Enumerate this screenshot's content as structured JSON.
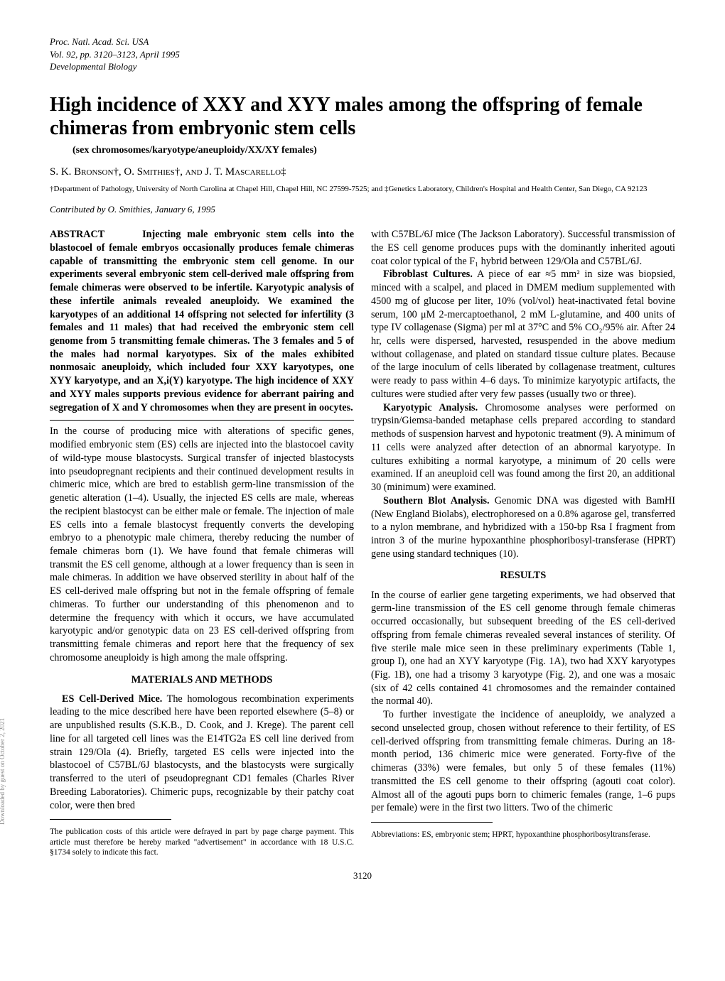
{
  "header": {
    "line1": "Proc. Natl. Acad. Sci. USA",
    "line2": "Vol. 92, pp. 3120–3123, April 1995",
    "line3": "Developmental Biology"
  },
  "title": "High incidence of XXY and XYY males among the offspring of female chimeras from embryonic stem cells",
  "subtitle": "(sex chromosomes/karyotype/aneuploidy/XX/XY females)",
  "authors": "S. K. Bronson†, O. Smithies†, and J. T. Mascarello‡",
  "affiliations": "†Department of Pathology, University of North Carolina at Chapel Hill, Chapel Hill, NC 27599-7525; and ‡Genetics Laboratory, Children's Hospital and Health Center, San Diego, CA 92123",
  "contributed": "Contributed by O. Smithies, January 6, 1995",
  "abstract": {
    "label": "ABSTRACT",
    "body": "Injecting male embryonic stem cells into the blastocoel of female embryos occasionally produces female chimeras capable of transmitting the embryonic stem cell genome. In our experiments several embryonic stem cell-derived male offspring from female chimeras were observed to be infertile. Karyotypic analysis of these infertile animals revealed aneuploidy. We examined the karyotypes of an additional 14 offspring not selected for infertility (3 females and 11 males) that had received the embryonic stem cell genome from 5 transmitting female chimeras. The 3 females and 5 of the males had normal karyotypes. Six of the males exhibited nonmosaic aneuploidy, which included four XXY karyotypes, one XYY karyotype, and an X,i(Y) karyotype. The high incidence of XXY and XYY males supports previous evidence for aberrant pairing and segregation of X and Y chromosomes when they are present in oocytes."
  },
  "intro": {
    "p1": "In the course of producing mice with alterations of specific genes, modified embryonic stem (ES) cells are injected into the blastocoel cavity of wild-type mouse blastocysts. Surgical transfer of injected blastocysts into pseudopregnant recipients and their continued development results in chimeric mice, which are bred to establish germ-line transmission of the genetic alteration (1–4). Usually, the injected ES cells are male, whereas the recipient blastocyst can be either male or female. The injection of male ES cells into a female blastocyst frequently converts the developing embryo to a phenotypic male chimera, thereby reducing the number of female chimeras born (1). We have found that female chimeras will transmit the ES cell genome, although at a lower frequency than is seen in male chimeras. In addition we have observed sterility in about half of the ES cell-derived male offspring but not in the female offspring of female chimeras. To further our understanding of this phenomenon and to determine the frequency with which it occurs, we have accumulated karyotypic and/or genotypic data on 23 ES cell-derived offspring from transmitting female chimeras and report here that the frequency of sex chromosome aneuploidy is high among the male offspring."
  },
  "methods": {
    "heading": "MATERIALS AND METHODS",
    "esderived_label": "ES Cell-Derived Mice.",
    "esderived_body": " The homologous recombination experiments leading to the mice described here have been reported elsewhere (5–8) or are unpublished results (S.K.B., D. Cook, and J. Krege). The parent cell line for all targeted cell lines was the E14TG2a ES cell line derived from strain 129/Ola (4). Briefly, targeted ES cells were injected into the blastocoel of C57BL/6J blastocysts, and the blastocysts were surgically transferred to the uteri of pseudopregnant CD1 females (Charles River Breeding Laboratories). Chimeric pups, recognizable by their patchy coat color, were then bred",
    "esderived_cont": "with C57BL/6J mice (The Jackson Laboratory). Successful transmission of the ES cell genome produces pups with the dominantly inherited agouti coat color typical of the F₁ hybrid between 129/Ola and C57BL/6J.",
    "fibro_label": "Fibroblast Cultures.",
    "fibro_body": " A piece of ear ≈5 mm² in size was biopsied, minced with a scalpel, and placed in DMEM medium supplemented with 4500 mg of glucose per liter, 10% (vol/vol) heat-inactivated fetal bovine serum, 100 μM 2-mercaptoethanol, 2 mM L-glutamine, and 400 units of type IV collagenase (Sigma) per ml at 37°C and 5% CO₂/95% air. After 24 hr, cells were dispersed, harvested, resuspended in the above medium without collagenase, and plated on standard tissue culture plates. Because of the large inoculum of cells liberated by collagenase treatment, cultures were ready to pass within 4–6 days. To minimize karyotypic artifacts, the cultures were studied after very few passes (usually two or three).",
    "karyo_label": "Karyotypic Analysis.",
    "karyo_body": " Chromosome analyses were performed on trypsin/Giemsa-banded metaphase cells prepared according to standard methods of suspension harvest and hypotonic treatment (9). A minimum of 11 cells were analyzed after detection of an abnormal karyotype. In cultures exhibiting a normal karyotype, a minimum of 20 cells were examined. If an aneuploid cell was found among the first 20, an additional 30 (minimum) were examined.",
    "southern_label": "Southern Blot Analysis.",
    "southern_body": " Genomic DNA was digested with BamHI (New England Biolabs), electrophoresed on a 0.8% agarose gel, transferred to a nylon membrane, and hybridized with a 150-bp Rsa I fragment from intron 3 of the murine hypoxanthine phosphoribosyl-transferase (HPRT) gene using standard techniques (10)."
  },
  "results": {
    "heading": "RESULTS",
    "p1": "In the course of earlier gene targeting experiments, we had observed that germ-line transmission of the ES cell genome through female chimeras occurred occasionally, but subsequent breeding of the ES cell-derived offspring from female chimeras revealed several instances of sterility. Of five sterile male mice seen in these preliminary experiments (Table 1, group I), one had an XYY karyotype (Fig. 1A), two had XXY karyotypes (Fig. 1B), one had a trisomy 3 karyotype (Fig. 2), and one was a mosaic (six of 42 cells contained 41 chromosomes and the remainder contained the normal 40).",
    "p2": "To further investigate the incidence of aneuploidy, we analyzed a second unselected group, chosen without reference to their fertility, of ES cell-derived offspring from transmitting female chimeras. During an 18-month period, 136 chimeric mice were generated. Forty-five of the chimeras (33%) were females, but only 5 of these females (11%) transmitted the ES cell genome to their offspring (agouti coat color). Almost all of the agouti pups born to chimeric females (range, 1–6 pups per female) were in the first two litters. Two of the chimeric"
  },
  "leftfoot": "The publication costs of this article were defrayed in part by page charge payment. This article must therefore be hereby marked \"advertisement\" in accordance with 18 U.S.C. §1734 solely to indicate this fact.",
  "rightfoot": "Abbreviations: ES, embryonic stem; HPRT, hypoxanthine phosphoribosyltransferase.",
  "pagenum": "3120",
  "sidetext": "Downloaded by guest on October 2, 2021"
}
